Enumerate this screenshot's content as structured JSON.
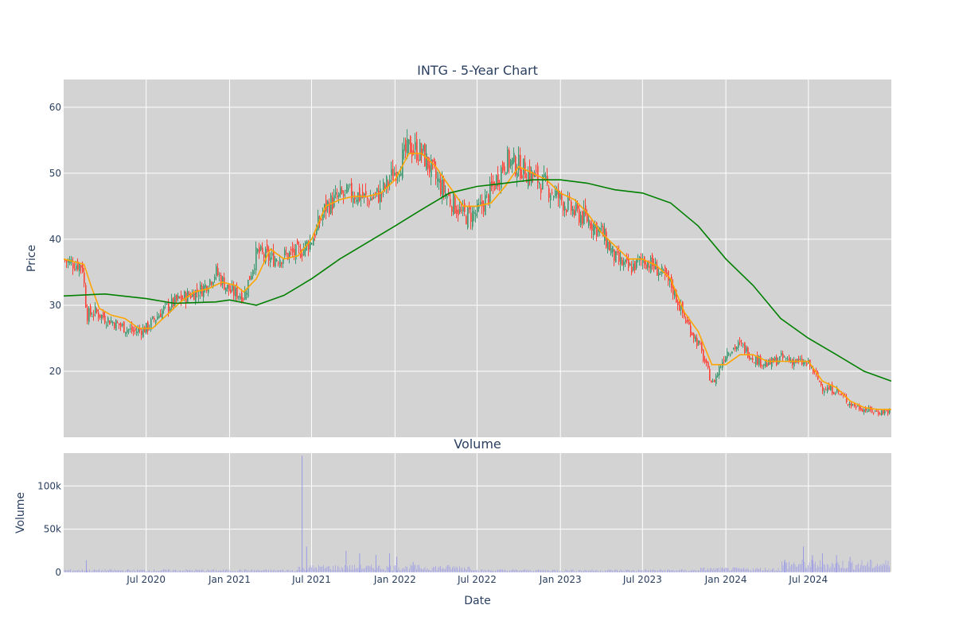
{
  "chart_data": [
    {
      "type": "candlestick",
      "title": "INTG - 5-Year Chart",
      "ylabel": "Price",
      "xlabel": "",
      "ylim": [
        10.0,
        64.2
      ],
      "x_range": [
        "2020-01-01",
        "2024-12-31"
      ],
      "y_ticks": [
        20,
        30,
        40,
        50,
        60
      ],
      "grid": true,
      "colors": {
        "increasing": "#3d9970",
        "decreasing": "#ff4136",
        "ma_short": "#ffa500",
        "ma_long": "#008000",
        "plot_bg": "#d3d3d3"
      },
      "series": [
        {
          "kind": "ohlc_approx_close_path",
          "points": [
            [
              "2020-01-01",
              36.8
            ],
            [
              "2020-01-20",
              36.4
            ],
            [
              "2020-02-10",
              36.0
            ],
            [
              "2020-02-20",
              28.5
            ],
            [
              "2020-03-10",
              29.0
            ],
            [
              "2020-04-01",
              28.0
            ],
            [
              "2020-05-01",
              27.0
            ],
            [
              "2020-06-01",
              26.0
            ],
            [
              "2020-07-01",
              26.5
            ],
            [
              "2020-08-01",
              29.0
            ],
            [
              "2020-09-01",
              30.5
            ],
            [
              "2020-10-01",
              31.5
            ],
            [
              "2020-11-01",
              32.5
            ],
            [
              "2020-12-01",
              35.0
            ],
            [
              "2021-01-01",
              32.0
            ],
            [
              "2021-02-01",
              31.5
            ],
            [
              "2021-03-01",
              38.0
            ],
            [
              "2021-04-01",
              37.0
            ],
            [
              "2021-05-01",
              37.5
            ],
            [
              "2021-06-01",
              38.0
            ],
            [
              "2021-07-01",
              40.0
            ],
            [
              "2021-08-01",
              45.0
            ],
            [
              "2021-09-01",
              46.5
            ],
            [
              "2021-10-01",
              47.0
            ],
            [
              "2021-11-01",
              46.0
            ],
            [
              "2021-12-01",
              47.0
            ],
            [
              "2022-01-01",
              50.5
            ],
            [
              "2022-02-01",
              54.0
            ],
            [
              "2022-03-01",
              53.0
            ],
            [
              "2022-04-01",
              49.0
            ],
            [
              "2022-05-01",
              46.0
            ],
            [
              "2022-06-01",
              43.5
            ],
            [
              "2022-07-01",
              44.0
            ],
            [
              "2022-08-01",
              47.5
            ],
            [
              "2022-09-01",
              52.0
            ],
            [
              "2022-10-01",
              51.0
            ],
            [
              "2022-11-01",
              49.5
            ],
            [
              "2022-12-01",
              48.0
            ],
            [
              "2023-01-01",
              46.0
            ],
            [
              "2023-02-01",
              44.0
            ],
            [
              "2023-03-01",
              43.0
            ],
            [
              "2023-04-01",
              41.0
            ],
            [
              "2023-05-01",
              37.0
            ],
            [
              "2023-06-01",
              35.5
            ],
            [
              "2023-07-01",
              37.0
            ],
            [
              "2023-08-01",
              35.5
            ],
            [
              "2023-09-01",
              33.0
            ],
            [
              "2023-10-01",
              28.0
            ],
            [
              "2023-11-01",
              24.0
            ],
            [
              "2023-12-01",
              18.0
            ],
            [
              "2024-01-01",
              23.0
            ],
            [
              "2024-02-01",
              24.0
            ],
            [
              "2024-03-01",
              22.0
            ],
            [
              "2024-04-01",
              21.0
            ],
            [
              "2024-05-01",
              22.0
            ],
            [
              "2024-06-01",
              21.5
            ],
            [
              "2024-07-01",
              21.0
            ],
            [
              "2024-08-01",
              17.5
            ],
            [
              "2024-09-01",
              17.0
            ],
            [
              "2024-10-01",
              15.0
            ],
            [
              "2024-11-01",
              14.2
            ],
            [
              "2024-12-01",
              13.8
            ],
            [
              "2024-12-31",
              14.0
            ]
          ]
        },
        {
          "kind": "moving_average_short",
          "points": [
            [
              "2020-01-01",
              37.0
            ],
            [
              "2020-02-15",
              36.2
            ],
            [
              "2020-03-01",
              33.0
            ],
            [
              "2020-03-20",
              29.5
            ],
            [
              "2020-04-15",
              28.5
            ],
            [
              "2020-05-15",
              28.0
            ],
            [
              "2020-06-15",
              26.5
            ],
            [
              "2020-07-15",
              26.5
            ],
            [
              "2020-08-15",
              28.5
            ],
            [
              "2020-09-15",
              30.5
            ],
            [
              "2020-10-15",
              32.0
            ],
            [
              "2020-11-15",
              32.5
            ],
            [
              "2020-12-15",
              33.5
            ],
            [
              "2021-01-15",
              33.0
            ],
            [
              "2021-02-01",
              32.0
            ],
            [
              "2021-03-01",
              34.0
            ],
            [
              "2021-04-01",
              38.5
            ],
            [
              "2021-05-01",
              37.0
            ],
            [
              "2021-06-01",
              37.5
            ],
            [
              "2021-07-01",
              40.0
            ],
            [
              "2021-08-01",
              45.0
            ],
            [
              "2021-09-01",
              46.0
            ],
            [
              "2021-10-01",
              46.5
            ],
            [
              "2021-11-01",
              46.5
            ],
            [
              "2021-12-01",
              47.0
            ],
            [
              "2022-01-01",
              49.0
            ],
            [
              "2022-02-01",
              53.0
            ],
            [
              "2022-03-01",
              53.0
            ],
            [
              "2022-04-01",
              51.0
            ],
            [
              "2022-05-01",
              48.0
            ],
            [
              "2022-06-01",
              45.0
            ],
            [
              "2022-07-01",
              45.0
            ],
            [
              "2022-08-01",
              45.5
            ],
            [
              "2022-09-01",
              48.0
            ],
            [
              "2022-10-01",
              51.0
            ],
            [
              "2022-11-01",
              50.0
            ],
            [
              "2022-12-01",
              49.0
            ],
            [
              "2023-01-01",
              47.0
            ],
            [
              "2023-02-01",
              46.0
            ],
            [
              "2023-03-01",
              44.0
            ],
            [
              "2023-04-01",
              41.0
            ],
            [
              "2023-05-01",
              39.0
            ],
            [
              "2023-06-01",
              37.0
            ],
            [
              "2023-07-01",
              37.0
            ],
            [
              "2023-08-01",
              36.0
            ],
            [
              "2023-09-01",
              34.0
            ],
            [
              "2023-10-01",
              29.0
            ],
            [
              "2023-11-01",
              26.0
            ],
            [
              "2023-12-01",
              21.0
            ],
            [
              "2024-01-01",
              21.0
            ],
            [
              "2024-02-01",
              22.5
            ],
            [
              "2024-03-01",
              22.5
            ],
            [
              "2024-04-01",
              21.5
            ],
            [
              "2024-05-01",
              21.5
            ],
            [
              "2024-06-01",
              21.5
            ],
            [
              "2024-07-01",
              21.5
            ],
            [
              "2024-08-01",
              18.5
            ],
            [
              "2024-09-01",
              17.5
            ],
            [
              "2024-10-01",
              15.5
            ],
            [
              "2024-11-01",
              14.5
            ],
            [
              "2024-12-01",
              14.2
            ],
            [
              "2024-12-31",
              14.2
            ]
          ]
        },
        {
          "kind": "moving_average_long",
          "points": [
            [
              "2020-01-01",
              31.4
            ],
            [
              "2020-04-01",
              31.7
            ],
            [
              "2020-07-01",
              31.0
            ],
            [
              "2020-09-01",
              30.3
            ],
            [
              "2020-12-01",
              30.5
            ],
            [
              "2021-01-01",
              30.8
            ],
            [
              "2021-03-01",
              30.0
            ],
            [
              "2021-05-01",
              31.5
            ],
            [
              "2021-07-01",
              34.0
            ],
            [
              "2021-09-01",
              37.0
            ],
            [
              "2021-11-01",
              39.5
            ],
            [
              "2022-01-01",
              42.0
            ],
            [
              "2022-03-01",
              44.5
            ],
            [
              "2022-05-01",
              47.0
            ],
            [
              "2022-07-01",
              48.0
            ],
            [
              "2022-09-01",
              48.5
            ],
            [
              "2022-11-01",
              49.0
            ],
            [
              "2023-01-01",
              49.0
            ],
            [
              "2023-03-01",
              48.5
            ],
            [
              "2023-05-01",
              47.5
            ],
            [
              "2023-07-01",
              47.0
            ],
            [
              "2023-09-01",
              45.5
            ],
            [
              "2023-11-01",
              42.0
            ],
            [
              "2024-01-01",
              37.0
            ],
            [
              "2024-03-01",
              33.0
            ],
            [
              "2024-05-01",
              28.0
            ],
            [
              "2024-07-01",
              25.0
            ],
            [
              "2024-09-01",
              22.5
            ],
            [
              "2024-11-01",
              20.0
            ],
            [
              "2024-12-31",
              18.5
            ]
          ]
        }
      ]
    },
    {
      "type": "bar",
      "title": "Volume",
      "ylabel": "Volume",
      "xlabel": "Date",
      "ylim": [
        0,
        138000
      ],
      "y_ticks": [
        0,
        50000,
        100000
      ],
      "y_tick_labels": [
        "0",
        "50k",
        "100k"
      ],
      "x_tick_labels": [
        "Jul 2020",
        "Jan 2021",
        "Jul 2021",
        "Jan 2022",
        "Jul 2022",
        "Jan 2023",
        "Jul 2023",
        "Jan 2024",
        "Jul 2024"
      ],
      "x_tick_dates": [
        "2020-07-01",
        "2021-01-01",
        "2021-07-01",
        "2022-01-01",
        "2022-07-01",
        "2023-01-01",
        "2023-07-01",
        "2024-01-01",
        "2024-07-01"
      ],
      "grid": true,
      "colors": {
        "bar": "#9a9ae6",
        "plot_bg": "#d3d3d3"
      },
      "spikes": [
        [
          "2020-02-20",
          14000
        ],
        [
          "2021-06-10",
          135000
        ],
        [
          "2021-06-20",
          30000
        ],
        [
          "2021-09-15",
          25000
        ],
        [
          "2021-10-15",
          22000
        ],
        [
          "2021-11-20",
          20000
        ],
        [
          "2021-12-20",
          22000
        ],
        [
          "2022-01-05",
          18000
        ],
        [
          "2022-02-10",
          12000
        ],
        [
          "2024-05-10",
          15000
        ],
        [
          "2024-06-20",
          30000
        ],
        [
          "2024-07-10",
          20000
        ],
        [
          "2024-08-01",
          22000
        ],
        [
          "2024-09-01",
          20000
        ],
        [
          "2024-10-01",
          18000
        ]
      ],
      "baseline_ranges": [
        [
          "2020-01-01",
          "2021-05-31",
          2500
        ],
        [
          "2021-06-01",
          "2022-06-30",
          6000
        ],
        [
          "2022-07-01",
          "2023-10-31",
          2500
        ],
        [
          "2023-11-01",
          "2024-04-30",
          4000
        ],
        [
          "2024-05-01",
          "2024-12-31",
          10000
        ]
      ]
    }
  ]
}
